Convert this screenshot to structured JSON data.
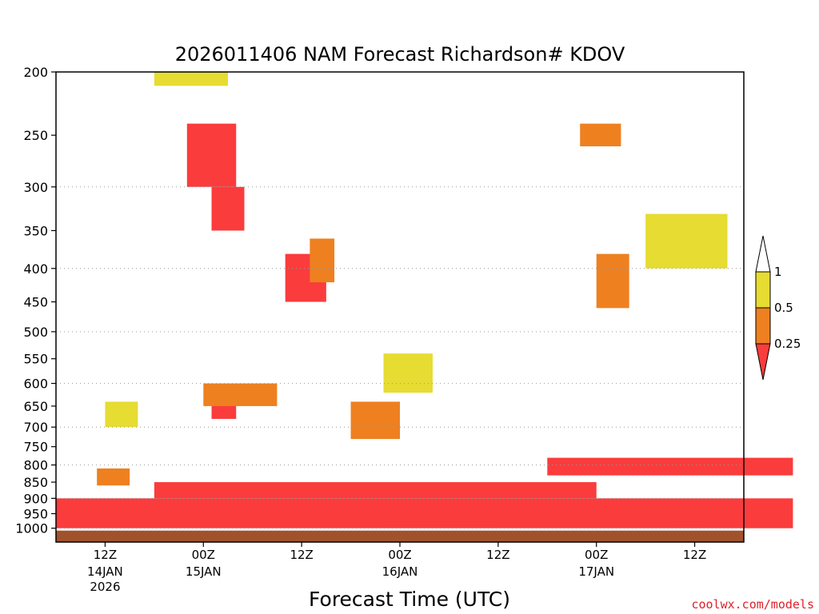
{
  "chart_data": {
    "type": "heatmap",
    "title": "2026011406 NAM Forecast Richardson# KDOV",
    "xlabel": "Forecast Time (UTC)",
    "ylabel": "",
    "x_start": "2026-01-14T06Z",
    "x_end": "2026-01-17T18Z",
    "time_step_hours": 1,
    "yscale": "log",
    "ylim": [
      1000,
      200
    ],
    "y_ticks": [
      200,
      250,
      300,
      350,
      400,
      450,
      500,
      550,
      600,
      650,
      700,
      750,
      800,
      850,
      900,
      950,
      1000
    ],
    "grid": "dotted at 300, 400, 500, 600, 700, 800, 900, 1000",
    "x_ticks": [
      {
        "label": "12Z",
        "date": "14JAN",
        "year": "2026"
      },
      {
        "label": "00Z",
        "date": "15JAN",
        "year": ""
      },
      {
        "label": "12Z",
        "date": "",
        "year": ""
      },
      {
        "label": "00Z",
        "date": "16JAN",
        "year": ""
      },
      {
        "label": "12Z",
        "date": "",
        "year": ""
      },
      {
        "label": "00Z",
        "date": "17JAN",
        "year": ""
      },
      {
        "label": "12Z",
        "date": "",
        "year": ""
      }
    ],
    "legend": {
      "placement": "right",
      "levels": [
        {
          "label": "1",
          "color": "#ffffff"
        },
        {
          "label": "0.5",
          "color": "#e6dc32"
        },
        {
          "label": "0.25",
          "color": "#ee8020"
        },
        {
          "label": "",
          "color": "#fa3c3c"
        }
      ]
    },
    "colors": {
      "ri_0_to_0.25": "#fa3c3c",
      "ri_0.25_to_0.5": "#ee8020",
      "ri_0.5_to_1": "#e6dc32",
      "ri_gt_1": "#ffffff",
      "below_ground": "#a0522d"
    },
    "regions": [
      {
        "ri": "0-0.25",
        "hours": [
          0,
          90
        ],
        "p": [
          900,
          1000
        ],
        "note": "continuous boundary layer band"
      },
      {
        "ri": "0-0.25",
        "hours": [
          12,
          66
        ],
        "p": [
          850,
          900
        ]
      },
      {
        "ri": "0-0.25",
        "hours": [
          60,
          90
        ],
        "p": [
          780,
          830
        ]
      },
      {
        "ri": "0-0.25",
        "hours": [
          16,
          22
        ],
        "p": [
          240,
          300
        ]
      },
      {
        "ri": "0-0.25",
        "hours": [
          19,
          23
        ],
        "p": [
          300,
          350
        ]
      },
      {
        "ri": "0-0.25",
        "hours": [
          28,
          33
        ],
        "p": [
          380,
          450
        ]
      },
      {
        "ri": "0-0.25",
        "hours": [
          19,
          22
        ],
        "p": [
          630,
          680
        ]
      },
      {
        "ri": "0.25-0.5",
        "hours": [
          18,
          27
        ],
        "p": [
          600,
          650
        ]
      },
      {
        "ri": "0.25-0.5",
        "hours": [
          36,
          42
        ],
        "p": [
          640,
          730
        ]
      },
      {
        "ri": "0.25-0.5",
        "hours": [
          31,
          34
        ],
        "p": [
          360,
          420
        ]
      },
      {
        "ri": "0.25-0.5",
        "hours": [
          64,
          69
        ],
        "p": [
          240,
          260
        ]
      },
      {
        "ri": "0.25-0.5",
        "hours": [
          66,
          70
        ],
        "p": [
          380,
          460
        ]
      },
      {
        "ri": "0.25-0.5",
        "hours": [
          5,
          9
        ],
        "p": [
          810,
          860
        ]
      },
      {
        "ri": "0.5-1",
        "hours": [
          40,
          46
        ],
        "p": [
          540,
          620
        ]
      },
      {
        "ri": "0.5-1",
        "hours": [
          72,
          82
        ],
        "p": [
          330,
          400
        ]
      },
      {
        "ri": "0.5-1",
        "hours": [
          12,
          21
        ],
        "p": [
          200,
          210
        ]
      },
      {
        "ri": "0.5-1",
        "hours": [
          6,
          10
        ],
        "p": [
          640,
          700
        ]
      }
    ]
  },
  "credit": "coolwx.com/models"
}
